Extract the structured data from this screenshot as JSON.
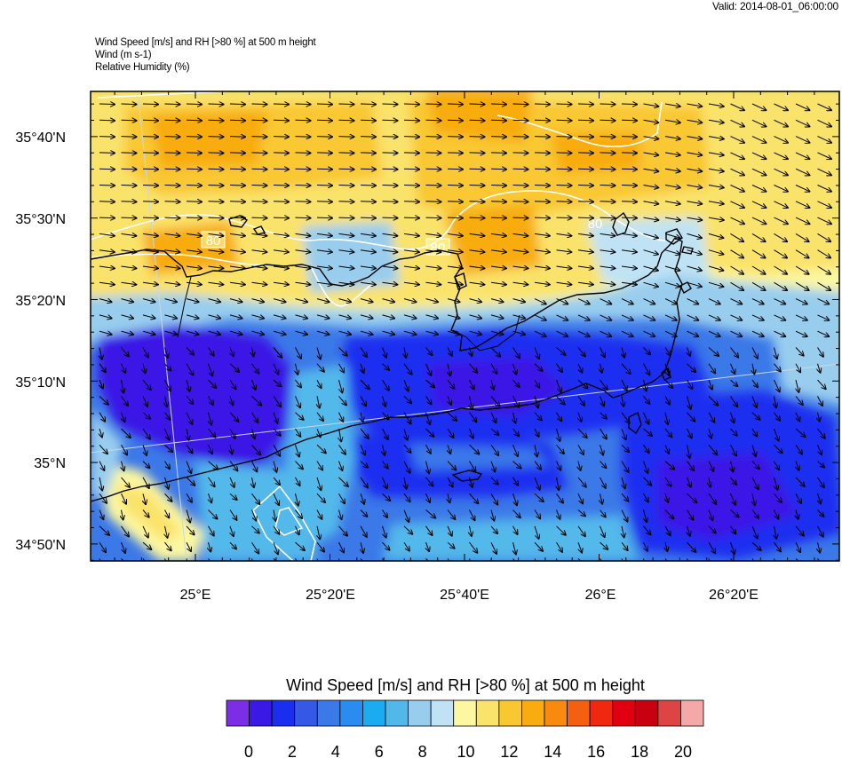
{
  "header": {
    "valid": "Valid: 2014-08-01_06:00:00",
    "line1": "Wind Speed [m/s] and RH [>80 %] at 500 m height",
    "line2": "Wind   (m s-1)",
    "line3": "Relative Humidity   (%)"
  },
  "map": {
    "lat_labels": [
      "35°40'N",
      "35°30'N",
      "35°20'N",
      "35°10'N",
      "35°N",
      "34°50'N"
    ],
    "lon_labels": [
      "25°E",
      "25°20'E",
      "25°40'E",
      "26°E",
      "26°20'E"
    ],
    "rh_contour_labels": [
      "80",
      "80",
      "80"
    ],
    "lat_range": [
      34.8,
      35.75
    ],
    "lon_range": [
      24.75,
      26.6
    ]
  },
  "colorbar": {
    "title": "Wind Speed [m/s] and RH [>80 %] at 500 m height",
    "ticks": [
      "0",
      "2",
      "4",
      "6",
      "8",
      "10",
      "12",
      "14",
      "16",
      "18",
      "20"
    ],
    "colors": [
      "#7b2ee6",
      "#3a19e6",
      "#1a2ef0",
      "#3559e6",
      "#3b78e8",
      "#2a8cf0",
      "#1aabf0",
      "#52b8ea",
      "#98cdee",
      "#bfe3f5",
      "#fcf7a0",
      "#fae36a",
      "#f9c830",
      "#f8ac10",
      "#f88a10",
      "#f46010",
      "#f02810",
      "#e00010",
      "#c80010",
      "#de4444",
      "#f5a8a8"
    ]
  }
}
